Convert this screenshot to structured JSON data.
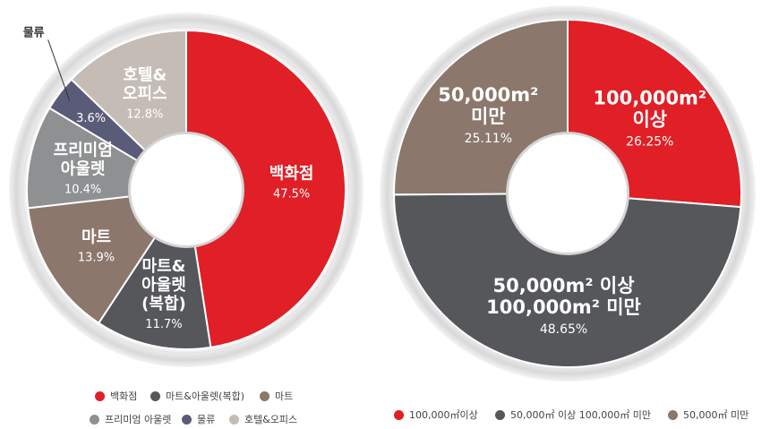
{
  "chart_data": [
    {
      "type": "pie",
      "variant": "donut",
      "slices": [
        {
          "label": [
            "백화점"
          ],
          "value": 47.5,
          "value_text": "47.5%",
          "color": "#e01f26",
          "legend": "백화점"
        },
        {
          "label": [
            "마트&",
            "아울렛",
            "(복합)"
          ],
          "value": 11.7,
          "value_text": "11.7%",
          "color": "#55575a",
          "legend": "마트&아울렛(복합)"
        },
        {
          "label": [
            "마트"
          ],
          "value": 13.9,
          "value_text": "13.9%",
          "color": "#8b776b",
          "legend": "마트"
        },
        {
          "label": [
            "프리미엄",
            "아울렛"
          ],
          "value": 10.4,
          "value_text": "10.4%",
          "color": "#8e9092",
          "legend": "프리미엄 아울렛"
        },
        {
          "label": [],
          "value": 3.6,
          "value_text": "3.6%",
          "color": "#5a5b78",
          "legend": "물류",
          "callout": "물류"
        },
        {
          "label": [
            "호텔&",
            "오피스"
          ],
          "value": 12.8,
          "value_text": "12.8%",
          "color": "#c5bcb5",
          "legend": "호텔&오피스"
        }
      ]
    },
    {
      "type": "pie",
      "variant": "donut",
      "slices": [
        {
          "label": [
            "100,000m²",
            "이상"
          ],
          "value": 26.25,
          "value_text": "26.25%",
          "color": "#e01f26",
          "legend": "100,000㎡이상"
        },
        {
          "label": [
            "50,000m² 이상",
            "100,000m² 미만"
          ],
          "value": 48.65,
          "value_text": "48.65%",
          "color": "#55575a",
          "legend": "50,000㎡ 이상 100,000㎡ 미만"
        },
        {
          "label": [
            "50,000m²",
            "미만"
          ],
          "value": 25.11,
          "value_text": "25.11%",
          "color": "#8b776b",
          "legend": "50,000㎡ 미만"
        }
      ]
    }
  ]
}
